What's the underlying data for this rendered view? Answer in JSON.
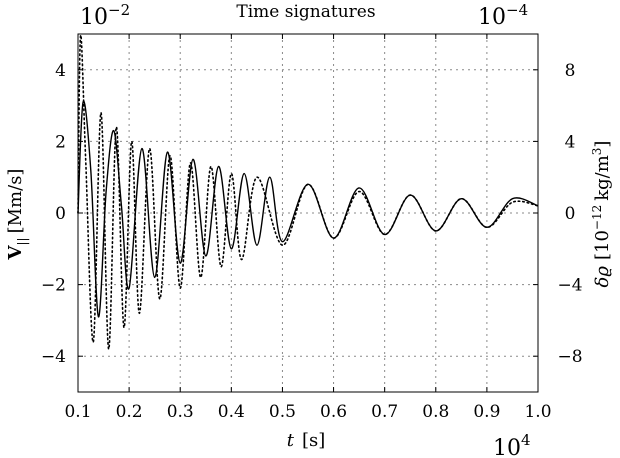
{
  "chart_data": {
    "type": "line",
    "title": "Time signatures",
    "xlabel_var": "t",
    "xlabel_unit": "[s]",
    "ylabel_left_var": "V",
    "ylabel_left_sub": "||",
    "ylabel_left_unit": "[Mm/s]",
    "ylabel_right_var": "δϱ",
    "ylabel_right_unit_pre": "[10",
    "ylabel_right_unit_exp": "−12",
    "ylabel_right_unit_post": "kg/m",
    "ylabel_right_unit_exp2": "3",
    "ylabel_right_unit_close": "]",
    "multiplier_top_left": {
      "base": "10",
      "exp": "−2"
    },
    "multiplier_top_right": {
      "base": "10",
      "exp": "−4"
    },
    "multiplier_bottom_right": {
      "base": "10",
      "exp": "4"
    },
    "xlim": [
      0.1,
      1.0
    ],
    "ylim_left": [
      -5,
      5
    ],
    "ylim_right": [
      -10,
      10
    ],
    "x_ticks": [
      "0.1",
      "0.2",
      "0.3",
      "0.4",
      "0.5",
      "0.6",
      "0.7",
      "0.8",
      "0.9",
      "1.0"
    ],
    "y_left_ticks": [
      "−4",
      "−2",
      "0",
      "2",
      "4"
    ],
    "y_right_ticks": [
      "−8",
      "−4",
      "0",
      "4",
      "8"
    ],
    "grid": true,
    "series": [
      {
        "style": "solid",
        "axis": "left",
        "color": "#000000",
        "x": [
          0.1,
          0.11,
          0.125,
          0.14,
          0.155,
          0.17,
          0.185,
          0.2,
          0.225,
          0.25,
          0.275,
          0.3,
          0.325,
          0.35,
          0.375,
          0.4,
          0.425,
          0.45,
          0.475,
          0.5,
          0.55,
          0.6,
          0.65,
          0.7,
          0.75,
          0.8,
          0.85,
          0.9,
          0.95,
          1.0
        ],
        "y": [
          0.0,
          3.1,
          1.2,
          -2.9,
          0.6,
          2.3,
          0.2,
          -2.1,
          1.8,
          -1.8,
          1.7,
          -1.4,
          1.5,
          -1.2,
          1.3,
          -1.0,
          1.1,
          -0.9,
          1.0,
          -0.8,
          0.8,
          -0.7,
          0.7,
          -0.6,
          0.5,
          -0.5,
          0.4,
          -0.4,
          0.4,
          0.2
        ]
      },
      {
        "style": "dotted",
        "axis": "right",
        "color": "#000000",
        "x": [
          0.1,
          0.105,
          0.115,
          0.13,
          0.145,
          0.16,
          0.175,
          0.19,
          0.205,
          0.22,
          0.24,
          0.26,
          0.28,
          0.3,
          0.32,
          0.34,
          0.36,
          0.38,
          0.4,
          0.42,
          0.45,
          0.5,
          0.55,
          0.6,
          0.65,
          0.7,
          0.75,
          0.8,
          0.85,
          0.9,
          0.95,
          1.0
        ],
        "y": [
          0.0,
          9.9,
          3.0,
          -7.2,
          5.6,
          -7.6,
          4.8,
          -6.4,
          4.0,
          -5.6,
          3.6,
          -4.8,
          3.2,
          -4.2,
          2.8,
          -3.6,
          2.6,
          -3.0,
          2.2,
          -2.6,
          2.0,
          -1.8,
          1.6,
          -1.4,
          1.2,
          -1.2,
          1.0,
          -1.0,
          0.8,
          -0.8,
          0.6,
          0.4
        ]
      }
    ]
  }
}
